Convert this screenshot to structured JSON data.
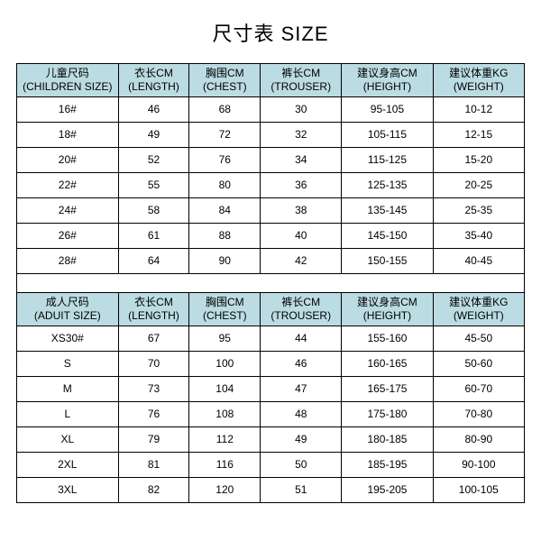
{
  "title": "尺寸表 SIZE",
  "header_bg": "#bbdce2",
  "children": {
    "columns": [
      {
        "cn": "儿童尺码",
        "en": "(CHILDREN SIZE)"
      },
      {
        "cn": "衣长CM",
        "en": "(LENGTH)"
      },
      {
        "cn": "胸围CM",
        "en": "(CHEST)"
      },
      {
        "cn": "裤长CM",
        "en": "(TROUSER)"
      },
      {
        "cn": "建议身高CM",
        "en": "(HEIGHT)"
      },
      {
        "cn": "建议体重KG",
        "en": "(WEIGHT)"
      }
    ],
    "rows": [
      [
        "16#",
        "46",
        "68",
        "30",
        "95-105",
        "10-12"
      ],
      [
        "18#",
        "49",
        "72",
        "32",
        "105-115",
        "12-15"
      ],
      [
        "20#",
        "52",
        "76",
        "34",
        "115-125",
        "15-20"
      ],
      [
        "22#",
        "55",
        "80",
        "36",
        "125-135",
        "20-25"
      ],
      [
        "24#",
        "58",
        "84",
        "38",
        "135-145",
        "25-35"
      ],
      [
        "26#",
        "61",
        "88",
        "40",
        "145-150",
        "35-40"
      ],
      [
        "28#",
        "64",
        "90",
        "42",
        "150-155",
        "40-45"
      ]
    ]
  },
  "adult": {
    "columns": [
      {
        "cn": "成人尺码",
        "en": "(ADUIT SIZE)"
      },
      {
        "cn": "衣长CM",
        "en": "(LENGTH)"
      },
      {
        "cn": "胸围CM",
        "en": "(CHEST)"
      },
      {
        "cn": "裤长CM",
        "en": "(TROUSER)"
      },
      {
        "cn": "建议身高CM",
        "en": "(HEIGHT)"
      },
      {
        "cn": "建议体重KG",
        "en": "(WEIGHT)"
      }
    ],
    "rows": [
      [
        "XS30#",
        "67",
        "95",
        "44",
        "155-160",
        "45-50"
      ],
      [
        "S",
        "70",
        "100",
        "46",
        "160-165",
        "50-60"
      ],
      [
        "M",
        "73",
        "104",
        "47",
        "165-175",
        "60-70"
      ],
      [
        "L",
        "76",
        "108",
        "48",
        "175-180",
        "70-80"
      ],
      [
        "XL",
        "79",
        "112",
        "49",
        "180-185",
        "80-90"
      ],
      [
        "2XL",
        "81",
        "116",
        "50",
        "185-195",
        "90-100"
      ],
      [
        "3XL",
        "82",
        "120",
        "51",
        "195-205",
        "100-105"
      ]
    ]
  }
}
